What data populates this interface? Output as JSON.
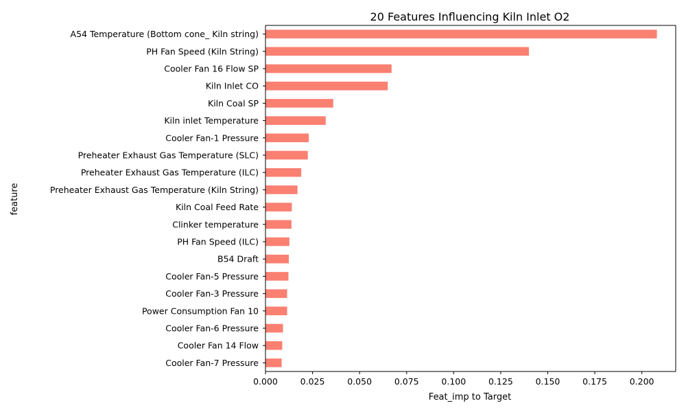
{
  "chart_data": {
    "type": "bar",
    "orientation": "horizontal",
    "title": "20 Features Influencing Kiln Inlet O2",
    "xlabel": "Feat_imp to Target",
    "ylabel": "feature",
    "xlim": [
      0.0,
      0.218
    ],
    "grid": false,
    "bar_color": "#fa8072",
    "x_ticks": [
      "0.000",
      "0.025",
      "0.050",
      "0.075",
      "0.100",
      "0.125",
      "0.150",
      "0.175",
      "0.200"
    ],
    "categories": [
      "A54 Temperature (Bottom cone_ Kiln string)",
      "PH Fan Speed  (Kiln String)",
      "Cooler Fan 16 Flow SP",
      "Kiln Inlet CO",
      "Kiln Coal SP",
      "Kiln inlet Temperature",
      "Cooler Fan-1 Pressure",
      "Preheater Exhaust Gas Temperature (SLC)",
      "Preheater Exhaust Gas Temperature (ILC)",
      "Preheater Exhaust Gas Temperature  (Kiln String)",
      "Kiln Coal Feed Rate",
      "Clinker temperature",
      "PH Fan Speed (ILC)",
      "B54 Draft",
      "Cooler Fan-5 Pressure",
      "Cooler Fan-3 Pressure",
      "Power Consumption Fan 10",
      "Cooler Fan-6 Pressure",
      "Cooler Fan 14 Flow",
      "Cooler Fan-7 Pressure"
    ],
    "values": [
      0.208,
      0.14,
      0.067,
      0.065,
      0.036,
      0.032,
      0.023,
      0.0225,
      0.019,
      0.017,
      0.014,
      0.0138,
      0.0127,
      0.0124,
      0.0122,
      0.0115,
      0.0115,
      0.0093,
      0.0089,
      0.0086
    ]
  }
}
